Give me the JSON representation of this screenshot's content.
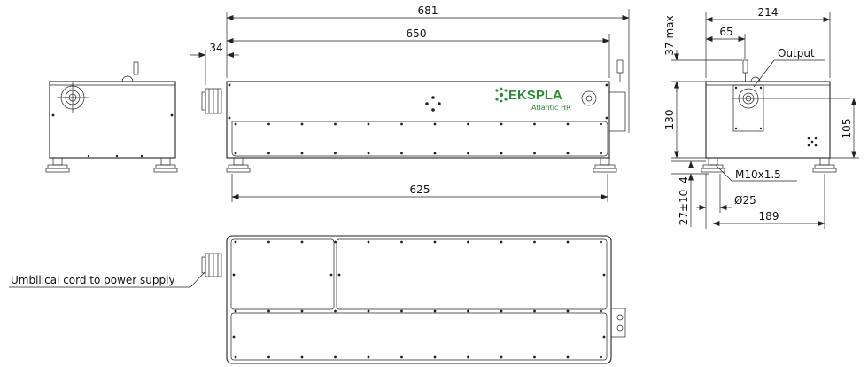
{
  "drawing": {
    "dimensions": {
      "d681": "681",
      "d650": "650",
      "d34": "34",
      "d625": "625",
      "d214": "214",
      "d37max": "37 max",
      "d65": "65",
      "d130": "130",
      "d105": "105",
      "d4": "4",
      "d27": "27±10",
      "d25": "Ø25",
      "d189": "189",
      "dM10": "M10x1.5"
    },
    "labels": {
      "output": "Output",
      "umbilical": "Umbilical cord to power supply"
    },
    "logo": {
      "brand": "EKSPLA",
      "model": "Atlantic HR",
      "color": "#2e8b3a"
    }
  }
}
